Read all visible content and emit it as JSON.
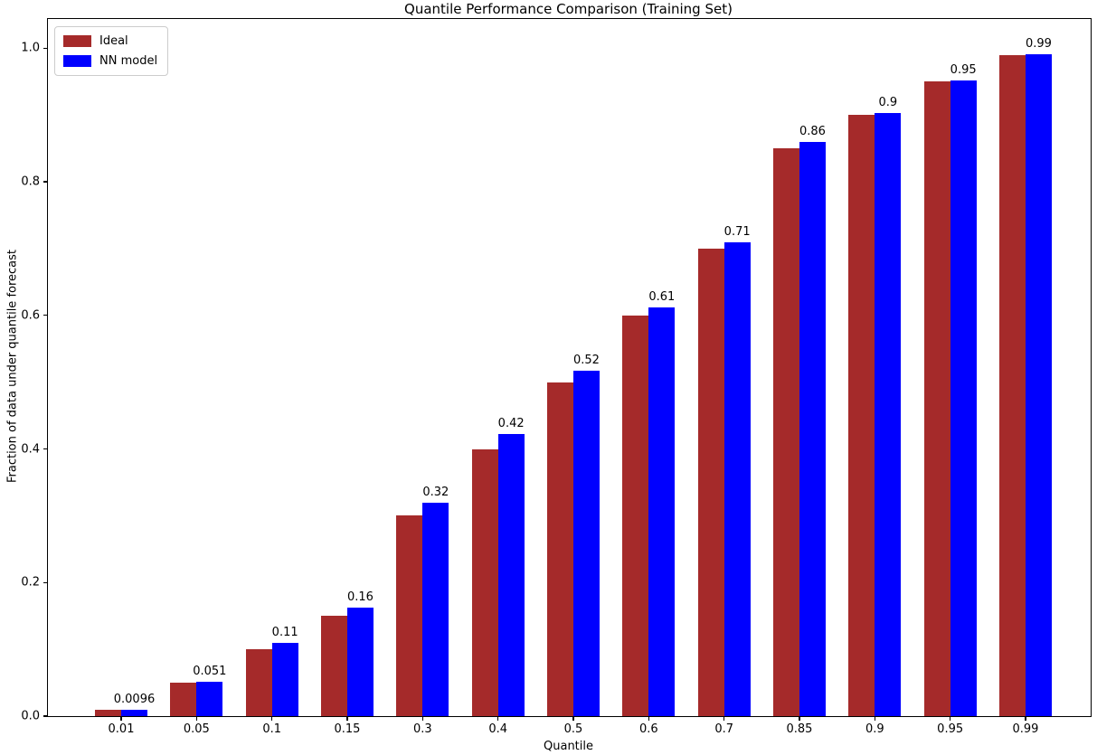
{
  "chart_data": {
    "type": "bar",
    "title": "Quantile Performance Comparison (Training Set)",
    "xlabel": "Quantile",
    "ylabel": "Fraction of data under quantile forecast",
    "categories": [
      "0.01",
      "0.05",
      "0.1",
      "0.15",
      "0.3",
      "0.4",
      "0.5",
      "0.6",
      "0.7",
      "0.85",
      "0.9",
      "0.95",
      "0.99"
    ],
    "series": [
      {
        "name": "Ideal",
        "color": "#a52a2a",
        "values": [
          0.01,
          0.05,
          0.1,
          0.15,
          0.3,
          0.4,
          0.5,
          0.6,
          0.7,
          0.85,
          0.9,
          0.95,
          0.99
        ]
      },
      {
        "name": "NN model",
        "color": "#0000ff",
        "values": [
          0.0096,
          0.051,
          0.109,
          0.162,
          0.32,
          0.422,
          0.517,
          0.612,
          0.71,
          0.859,
          0.903,
          0.951,
          0.991
        ]
      }
    ],
    "bar_labels": [
      "0.0096",
      "0.051",
      "0.11",
      "0.16",
      "0.32",
      "0.42",
      "0.52",
      "0.61",
      "0.71",
      "0.86",
      "0.9",
      "0.95",
      "0.99"
    ],
    "yticks": [
      "0.0",
      "0.2",
      "0.4",
      "0.6",
      "0.8",
      "1.0"
    ],
    "ylim": [
      0,
      1.0437
    ],
    "grid": false,
    "legend_position": "upper-left"
  }
}
